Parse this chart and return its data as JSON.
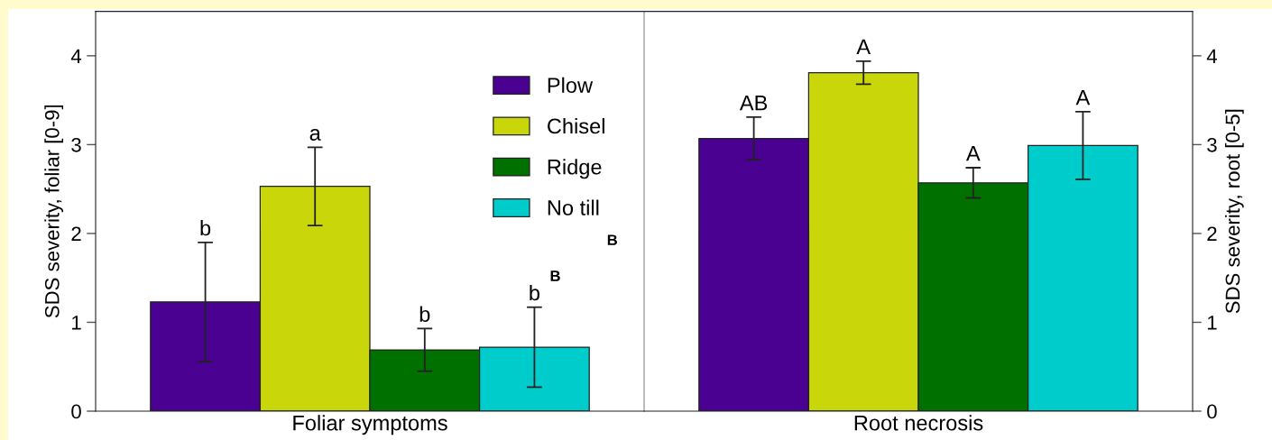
{
  "chart_data": [
    {
      "type": "bar",
      "categories": [
        "Foliar symptoms"
      ],
      "ylabel": "SDS severity, foliar [0-9]",
      "ylim": [
        0,
        4.5
      ],
      "yticks": [
        0,
        1,
        2,
        3,
        4
      ],
      "legend": "top right",
      "series": [
        {
          "name": "Plow",
          "color": "#4a0090",
          "values": [
            1.23
          ],
          "errors": [
            0.67
          ],
          "value_labels": [
            "b"
          ]
        },
        {
          "name": "Chisel",
          "color": "#c8d60a",
          "values": [
            2.53
          ],
          "errors": [
            0.44
          ],
          "value_labels": [
            "a"
          ]
        },
        {
          "name": "Ridge",
          "color": "#007000",
          "values": [
            0.69
          ],
          "errors": [
            0.24
          ],
          "value_labels": [
            "b"
          ]
        },
        {
          "name": "No till",
          "color": "#00cccc",
          "values": [
            0.72
          ],
          "errors": [
            0.45
          ],
          "value_labels": [
            "b"
          ]
        }
      ],
      "annotations": [
        "B",
        "B"
      ]
    },
    {
      "type": "bar",
      "categories": [
        "Root necrosis"
      ],
      "ylabel": "SDS severity, root [0-5]",
      "ylim": [
        0,
        4.5
      ],
      "yticks": [
        0,
        1,
        2,
        3,
        4
      ],
      "series": [
        {
          "color": "#4a0090",
          "values": [
            3.07
          ],
          "errors": [
            0.24
          ],
          "value_labels": [
            "AB"
          ]
        },
        {
          "color": "#c8d60a",
          "values": [
            3.81
          ],
          "errors": [
            0.13
          ],
          "value_labels": [
            "A"
          ]
        },
        {
          "color": "#007000",
          "values": [
            2.57
          ],
          "errors": [
            0.17
          ],
          "value_labels": [
            "A"
          ]
        },
        {
          "color": "#00cccc",
          "values": [
            2.99
          ],
          "errors": [
            0.38
          ],
          "value_labels": [
            "A"
          ]
        }
      ]
    }
  ]
}
